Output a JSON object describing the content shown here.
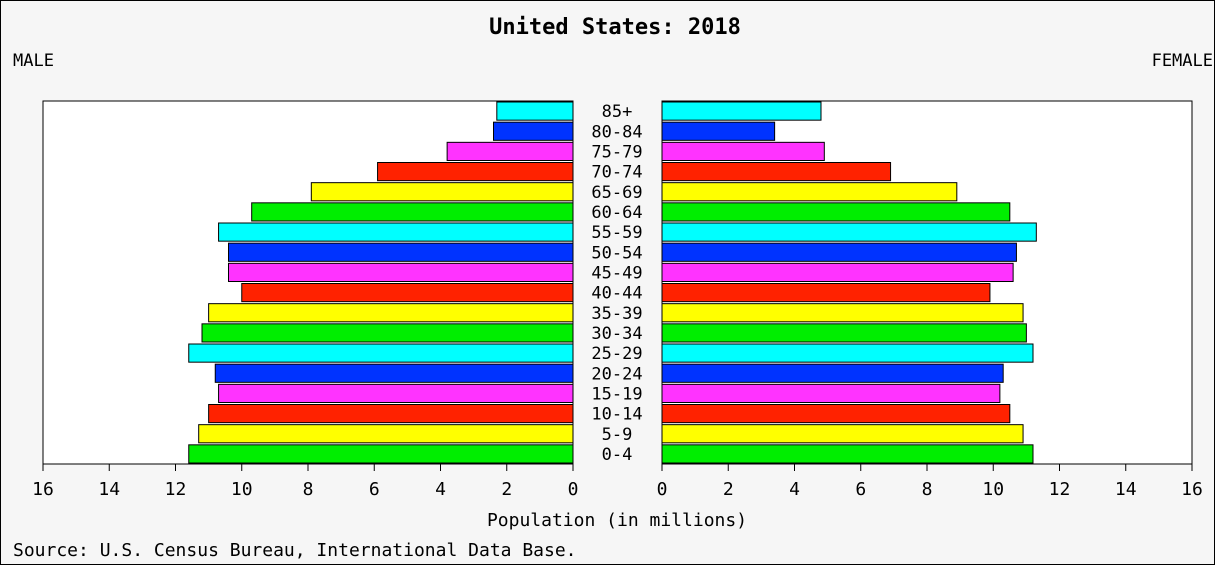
{
  "chart_data": {
    "type": "bar",
    "title": "United States: 2018",
    "left_label": "MALE",
    "right_label": "FEMALE",
    "xlabel": "Population (in millions)",
    "source": "Source: U.S. Census Bureau, International Data Base.",
    "xlim": [
      0,
      16
    ],
    "x_ticks": [
      0,
      2,
      4,
      6,
      8,
      10,
      12,
      14,
      16
    ],
    "grid": false,
    "categories": [
      "85+",
      "80-84",
      "75-79",
      "70-74",
      "65-69",
      "60-64",
      "55-59",
      "50-54",
      "45-49",
      "40-44",
      "35-39",
      "30-34",
      "25-29",
      "20-24",
      "15-19",
      "10-14",
      "5-9",
      "0-4"
    ],
    "series": [
      {
        "name": "MALE",
        "values": [
          2.3,
          2.4,
          3.8,
          5.9,
          7.9,
          9.7,
          10.7,
          10.4,
          10.4,
          10.0,
          11.0,
          11.2,
          11.6,
          10.8,
          10.7,
          11.0,
          11.3,
          11.6
        ]
      },
      {
        "name": "FEMALE",
        "values": [
          4.8,
          3.4,
          4.9,
          6.9,
          8.9,
          10.5,
          11.3,
          10.7,
          10.6,
          9.9,
          10.9,
          11.0,
          11.2,
          10.3,
          10.2,
          10.5,
          10.9,
          11.2
        ]
      }
    ],
    "row_colors": [
      "#00ffff",
      "#0033ff",
      "#ff33ff",
      "#ff2200",
      "#ffff00",
      "#00ee00",
      "#00ffff",
      "#0033ff",
      "#ff33ff",
      "#ff2200",
      "#ffff00",
      "#00ee00",
      "#00ffff",
      "#0033ff",
      "#ff33ff",
      "#ff2200",
      "#ffff00",
      "#00ee00"
    ]
  }
}
